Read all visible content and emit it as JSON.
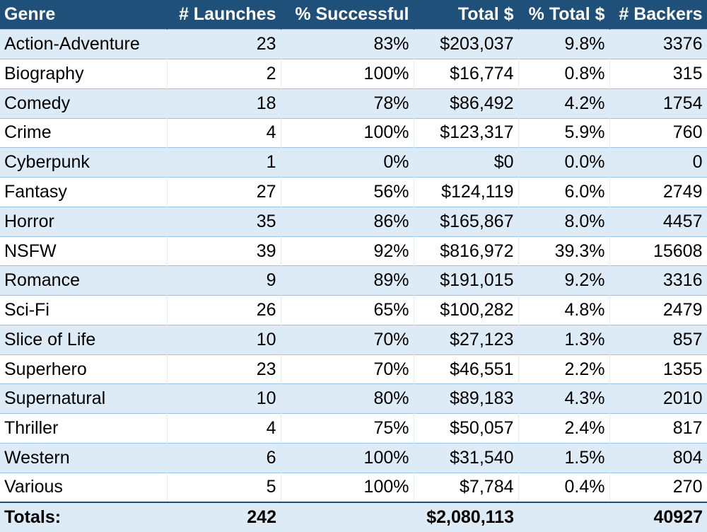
{
  "chart_data": {
    "type": "table",
    "columns": [
      "Genre",
      "# Launches",
      "% Successful",
      "Total $",
      "% Total $",
      "# Backers"
    ],
    "rows": [
      [
        "Action-Adventure",
        "23",
        "83%",
        "$203,037",
        "9.8%",
        "3376"
      ],
      [
        "Biography",
        "2",
        "100%",
        "$16,774",
        "0.8%",
        "315"
      ],
      [
        "Comedy",
        "18",
        "78%",
        "$86,492",
        "4.2%",
        "1754"
      ],
      [
        "Crime",
        "4",
        "100%",
        "$123,317",
        "5.9%",
        "760"
      ],
      [
        "Cyberpunk",
        "1",
        "0%",
        "$0",
        "0.0%",
        "0"
      ],
      [
        "Fantasy",
        "27",
        "56%",
        "$124,119",
        "6.0%",
        "2749"
      ],
      [
        "Horror",
        "35",
        "86%",
        "$165,867",
        "8.0%",
        "4457"
      ],
      [
        "NSFW",
        "39",
        "92%",
        "$816,972",
        "39.3%",
        "15608"
      ],
      [
        "Romance",
        "9",
        "89%",
        "$191,015",
        "9.2%",
        "3316"
      ],
      [
        "Sci-Fi",
        "26",
        "65%",
        "$100,282",
        "4.8%",
        "2479"
      ],
      [
        "Slice of Life",
        "10",
        "70%",
        "$27,123",
        "1.3%",
        "857"
      ],
      [
        "Superhero",
        "23",
        "70%",
        "$46,551",
        "2.2%",
        "1355"
      ],
      [
        "Supernatural",
        "10",
        "80%",
        "$89,183",
        "4.3%",
        "2010"
      ],
      [
        "Thriller",
        "4",
        "75%",
        "$50,057",
        "2.4%",
        "817"
      ],
      [
        "Western",
        "6",
        "100%",
        "$31,540",
        "1.5%",
        "804"
      ],
      [
        "Various",
        "5",
        "100%",
        "$7,784",
        "0.4%",
        "270"
      ]
    ],
    "totals": [
      "Totals:",
      "242",
      "",
      "$2,080,113",
      "",
      "40927"
    ],
    "header_color": "#1f5079",
    "band_color": "#ddebf7"
  }
}
